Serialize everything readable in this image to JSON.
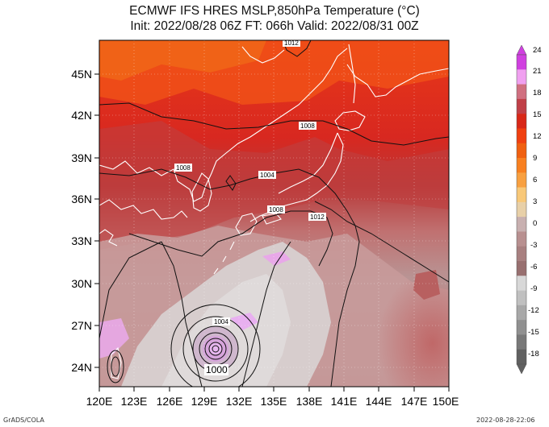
{
  "title_line1": "ECMWF IFS HRES MSLP,850hPa Temperature (°C)",
  "title_line2": "Init: 2022/08/28 06Z  FT: 066h  Valid: 2022/08/31 00Z",
  "footer_left": "GrADS/COLA",
  "footer_right": "2022-08-28-22:06",
  "lon_labels": [
    "120E",
    "123E",
    "126E",
    "129E",
    "132E",
    "135E",
    "138E",
    "141E",
    "144E",
    "147E",
    "150E"
  ],
  "lat_labels": [
    "45N",
    "42N",
    "39N",
    "36N",
    "33N",
    "30N",
    "27N",
    "24N"
  ],
  "colorbar": {
    "labels": [
      "24",
      "21",
      "18",
      "15",
      "12",
      "9",
      "6",
      "3",
      "0",
      "-3",
      "-6",
      "-9",
      "-12",
      "-15",
      "-18"
    ],
    "colors": [
      "#d040e0",
      "#f0a0f0",
      "#d07080",
      "#c04048",
      "#d82818",
      "#f04010",
      "#f06010",
      "#f88020",
      "#f8a040",
      "#f8c878",
      "#e8d0a8",
      "#c8b0b0",
      "#b89090",
      "#a88080",
      "#987070",
      "#d8d8d8",
      "#c0c0c0",
      "#a8a8a8",
      "#909090",
      "#787878",
      "#606060"
    ]
  },
  "isobar_labels": [
    "1012",
    "1008",
    "1008",
    "1004",
    "1008",
    "1012",
    "1004",
    "1000"
  ],
  "colors": {
    "contour": "#111111",
    "coast": "#ffffff"
  }
}
